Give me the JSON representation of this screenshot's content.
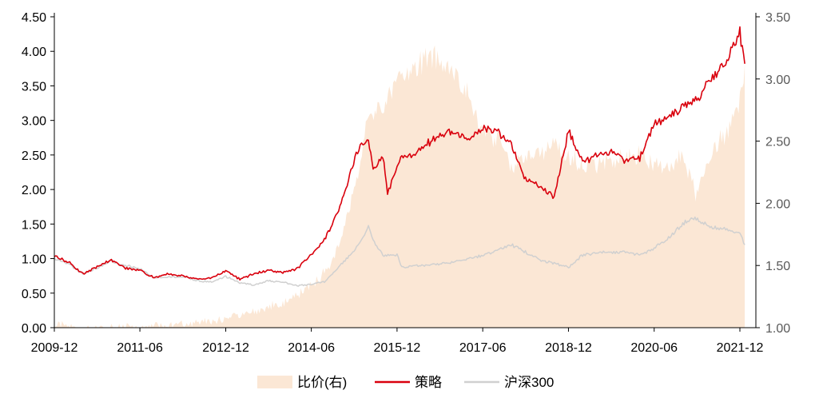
{
  "chart_data": {
    "type": "area",
    "title": "",
    "x_tick_labels": [
      "2009-12",
      "2011-06",
      "2012-12",
      "2014-06",
      "2015-12",
      "2017-06",
      "2018-12",
      "2020-06",
      "2021-12"
    ],
    "x_range": [
      "2009-12",
      "2022-06"
    ],
    "y_left": {
      "ticks": [
        "0.00",
        "0.50",
        "1.00",
        "1.50",
        "2.00",
        "2.50",
        "3.00",
        "3.50",
        "4.00",
        "4.50"
      ],
      "range": [
        0,
        4.5
      ]
    },
    "y_right": {
      "ticks": [
        "1.00",
        "1.50",
        "2.00",
        "2.50",
        "3.00",
        "3.50"
      ],
      "range": [
        1.0,
        3.5
      ]
    },
    "legend": {
      "position": "bottom",
      "entries": [
        "比价(右)",
        "策略",
        "沪深300"
      ]
    },
    "series": [
      {
        "name": "比价(右)",
        "axis": "right",
        "style": "area",
        "color": "#fbe7d5",
        "x": [
          "2009-12",
          "2010-06",
          "2010-12",
          "2011-06",
          "2011-12",
          "2012-06",
          "2012-12",
          "2013-06",
          "2013-12",
          "2014-03",
          "2014-06",
          "2014-09",
          "2014-12",
          "2015-03",
          "2015-06",
          "2015-09",
          "2015-12",
          "2016-03",
          "2016-06",
          "2016-09",
          "2016-12",
          "2017-03",
          "2017-06",
          "2017-09",
          "2017-12",
          "2018-03",
          "2018-06",
          "2018-09",
          "2018-12",
          "2019-03",
          "2019-06",
          "2019-09",
          "2019-12",
          "2020-03",
          "2020-06",
          "2020-09",
          "2020-12",
          "2021-03",
          "2021-06",
          "2021-09",
          "2021-12",
          "2022-01"
        ],
        "values": [
          1.02,
          1.0,
          1.0,
          1.01,
          1.02,
          1.04,
          1.07,
          1.14,
          1.2,
          1.26,
          1.34,
          1.45,
          1.68,
          2.1,
          2.68,
          2.78,
          2.97,
          3.05,
          3.18,
          3.15,
          3.05,
          2.88,
          2.55,
          2.53,
          2.27,
          2.39,
          2.4,
          2.48,
          2.38,
          2.33,
          2.31,
          2.34,
          2.36,
          2.39,
          2.31,
          2.28,
          2.38,
          2.05,
          2.42,
          2.55,
          2.85,
          3.12
        ]
      },
      {
        "name": "策略",
        "axis": "left",
        "style": "line",
        "color": "#d9000d",
        "x": [
          "2009-12",
          "2010-03",
          "2010-06",
          "2010-09",
          "2010-12",
          "2011-03",
          "2011-06",
          "2011-09",
          "2011-12",
          "2012-03",
          "2012-06",
          "2012-09",
          "2012-12",
          "2013-03",
          "2013-06",
          "2013-09",
          "2013-12",
          "2014-03",
          "2014-06",
          "2014-09",
          "2014-12",
          "2015-02",
          "2015-04",
          "2015-06",
          "2015-07",
          "2015-09",
          "2015-10",
          "2015-12",
          "2016-01",
          "2016-03",
          "2016-06",
          "2016-09",
          "2016-12",
          "2017-03",
          "2017-06",
          "2017-09",
          "2017-12",
          "2018-03",
          "2018-06",
          "2018-09",
          "2018-12",
          "2019-03",
          "2019-06",
          "2019-09",
          "2019-12",
          "2020-03",
          "2020-06",
          "2020-09",
          "2020-12",
          "2021-03",
          "2021-06",
          "2021-09",
          "2021-12",
          "2022-01"
        ],
        "values": [
          1.03,
          0.95,
          0.78,
          0.88,
          0.98,
          0.86,
          0.83,
          0.72,
          0.78,
          0.75,
          0.7,
          0.72,
          0.82,
          0.7,
          0.78,
          0.83,
          0.8,
          0.85,
          1.05,
          1.3,
          1.75,
          2.2,
          2.6,
          2.72,
          2.3,
          2.5,
          1.95,
          2.3,
          2.5,
          2.5,
          2.65,
          2.8,
          2.85,
          2.7,
          2.88,
          2.85,
          2.65,
          2.15,
          2.05,
          1.9,
          2.85,
          2.4,
          2.5,
          2.55,
          2.42,
          2.45,
          2.95,
          3.05,
          3.2,
          3.3,
          3.6,
          3.85,
          4.28,
          3.82
        ]
      },
      {
        "name": "沪深300",
        "axis": "left",
        "style": "line",
        "color": "#d0d0d0",
        "x": [
          "2009-12",
          "2010-03",
          "2010-06",
          "2010-09",
          "2010-12",
          "2011-03",
          "2011-06",
          "2011-09",
          "2011-12",
          "2012-03",
          "2012-06",
          "2012-09",
          "2012-12",
          "2013-03",
          "2013-06",
          "2013-09",
          "2013-12",
          "2014-03",
          "2014-06",
          "2014-09",
          "2014-12",
          "2015-03",
          "2015-06",
          "2015-07",
          "2015-09",
          "2015-12",
          "2016-01",
          "2016-06",
          "2016-12",
          "2017-06",
          "2017-12",
          "2018-03",
          "2018-06",
          "2018-09",
          "2018-12",
          "2019-03",
          "2019-06",
          "2019-12",
          "2020-03",
          "2020-06",
          "2020-09",
          "2020-12",
          "2021-02",
          "2021-06",
          "2021-09",
          "2021-12",
          "2022-01"
        ],
        "values": [
          1.0,
          0.92,
          0.78,
          0.87,
          0.96,
          0.9,
          0.85,
          0.72,
          0.73,
          0.74,
          0.68,
          0.66,
          0.74,
          0.65,
          0.62,
          0.68,
          0.66,
          0.61,
          0.62,
          0.67,
          0.9,
          1.1,
          1.45,
          1.25,
          1.05,
          1.05,
          0.87,
          0.9,
          0.95,
          1.05,
          1.2,
          1.1,
          0.98,
          0.93,
          0.87,
          1.05,
          1.08,
          1.1,
          1.05,
          1.15,
          1.3,
          1.5,
          1.6,
          1.45,
          1.42,
          1.38,
          1.2
        ]
      }
    ]
  }
}
